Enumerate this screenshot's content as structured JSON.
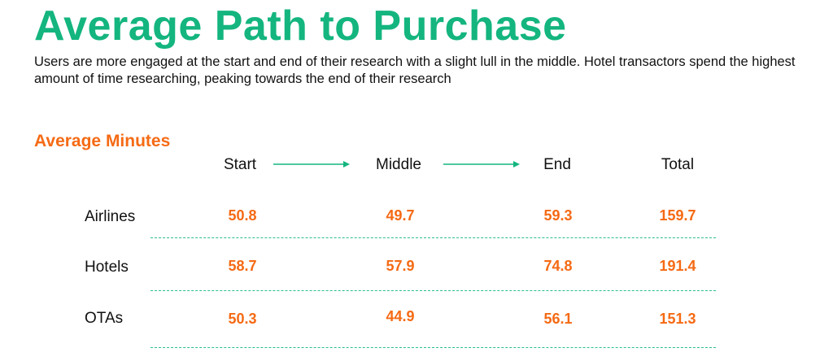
{
  "title": "Average Path to Purchase",
  "subtitle": "Users are more engaged at the start and end of their research with a slight lull in the middle. Hotel transactors spend the highest amount of time researching, peaking towards the end of their research",
  "section_label": "Average Minutes",
  "colors": {
    "title": "#14b57f",
    "accent": "#f56a14",
    "divider": "#2bbf8f",
    "arrow": "#14b57f"
  },
  "columns": [
    "Start",
    "Middle",
    "End",
    "Total"
  ],
  "rows": [
    {
      "label": "Airlines",
      "values": [
        "50.8",
        "49.7",
        "59.3",
        "159.7"
      ]
    },
    {
      "label": "Hotels",
      "values": [
        "58.7",
        "57.9",
        "74.8",
        "191.4"
      ]
    },
    {
      "label": "OTAs",
      "values": [
        "50.3",
        "44.9",
        "56.1",
        "151.3"
      ]
    }
  ]
}
